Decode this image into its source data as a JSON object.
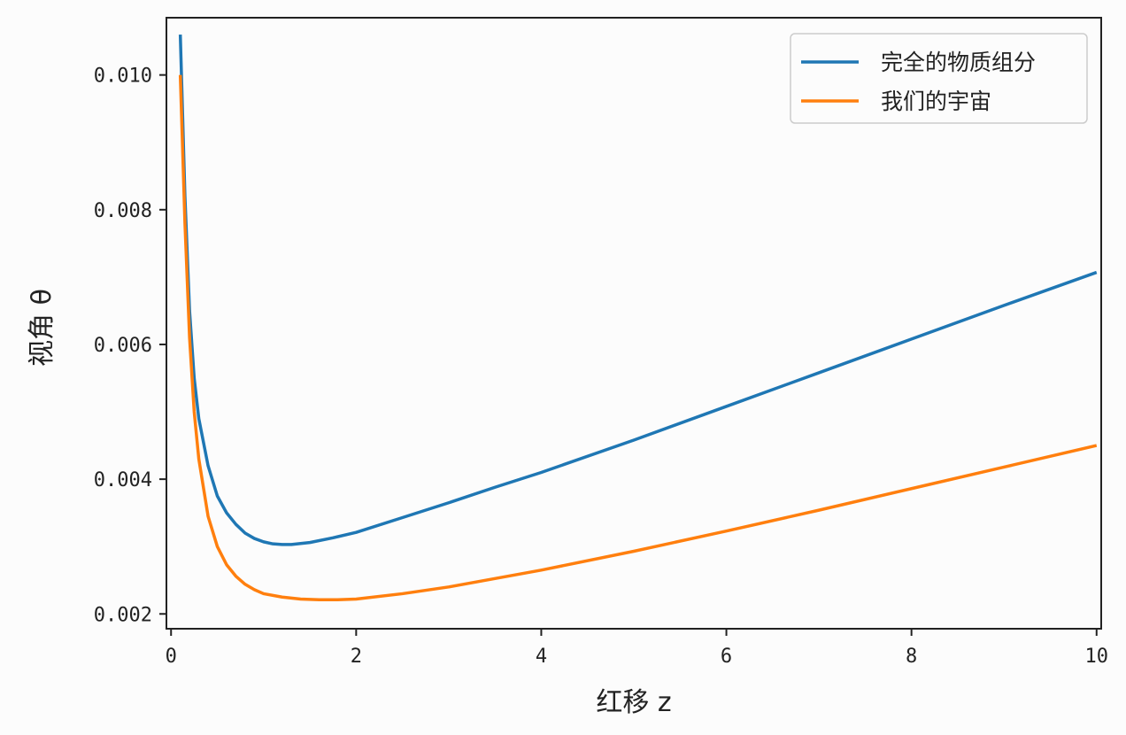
{
  "chart_data": {
    "type": "line",
    "title": "",
    "xlabel": "红移 z",
    "ylabel": "视角 θ",
    "xlim": [
      -0.05,
      10.05
    ],
    "ylim": [
      0.00178,
      0.01085
    ],
    "xticks": [
      0,
      2,
      4,
      6,
      8,
      10
    ],
    "xtick_labels": [
      "0",
      "2",
      "4",
      "6",
      "8",
      "10"
    ],
    "yticks": [
      0.002,
      0.004,
      0.006,
      0.008,
      0.01
    ],
    "ytick_labels": [
      "0.002",
      "0.004",
      "0.006",
      "0.008",
      "0.010"
    ],
    "grid": false,
    "legend_position": "top-right",
    "series": [
      {
        "name": "完全的物质组分",
        "color": "#1f77b4",
        "points": [
          [
            0.1,
            0.0106
          ],
          [
            0.15,
            0.0082
          ],
          [
            0.2,
            0.0065
          ],
          [
            0.25,
            0.0055
          ],
          [
            0.3,
            0.0049
          ],
          [
            0.4,
            0.0042
          ],
          [
            0.5,
            0.00375
          ],
          [
            0.6,
            0.0035
          ],
          [
            0.7,
            0.00333
          ],
          [
            0.8,
            0.0032
          ],
          [
            0.9,
            0.00312
          ],
          [
            1.0,
            0.00307
          ],
          [
            1.1,
            0.00304
          ],
          [
            1.2,
            0.00303
          ],
          [
            1.3,
            0.00303
          ],
          [
            1.5,
            0.00306
          ],
          [
            1.75,
            0.00313
          ],
          [
            2.0,
            0.00321
          ],
          [
            2.5,
            0.00343
          ],
          [
            3.0,
            0.00365
          ],
          [
            3.5,
            0.00388
          ],
          [
            4.0,
            0.0041
          ],
          [
            5.0,
            0.00458
          ],
          [
            6.0,
            0.00508
          ],
          [
            7.0,
            0.00558
          ],
          [
            8.0,
            0.00608
          ],
          [
            9.0,
            0.00658
          ],
          [
            10.0,
            0.00707
          ]
        ]
      },
      {
        "name": "我们的宇宙",
        "color": "#ff7f0e",
        "points": [
          [
            0.1,
            0.01
          ],
          [
            0.15,
            0.0078
          ],
          [
            0.2,
            0.0061
          ],
          [
            0.25,
            0.005
          ],
          [
            0.3,
            0.0043
          ],
          [
            0.4,
            0.00345
          ],
          [
            0.5,
            0.003
          ],
          [
            0.6,
            0.00273
          ],
          [
            0.7,
            0.00256
          ],
          [
            0.8,
            0.00244
          ],
          [
            0.9,
            0.00236
          ],
          [
            1.0,
            0.0023
          ],
          [
            1.2,
            0.00225
          ],
          [
            1.4,
            0.00222
          ],
          [
            1.6,
            0.00221
          ],
          [
            1.8,
            0.00221
          ],
          [
            2.0,
            0.00222
          ],
          [
            2.5,
            0.0023
          ],
          [
            3.0,
            0.0024
          ],
          [
            4.0,
            0.00265
          ],
          [
            5.0,
            0.00293
          ],
          [
            6.0,
            0.00323
          ],
          [
            7.0,
            0.00354
          ],
          [
            8.0,
            0.00386
          ],
          [
            9.0,
            0.00418
          ],
          [
            10.0,
            0.0045
          ]
        ]
      }
    ]
  }
}
